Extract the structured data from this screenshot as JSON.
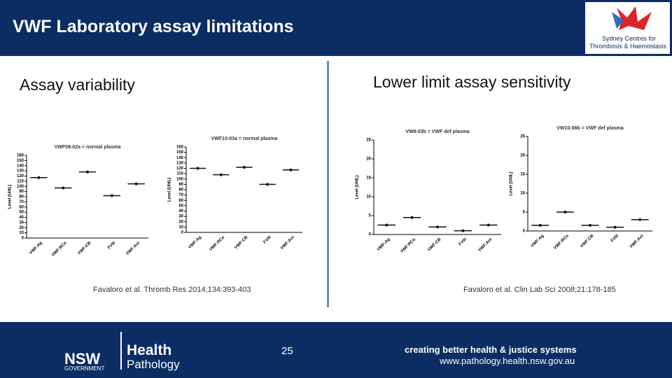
{
  "header": {
    "title": "VWF Laboratory assay limitations",
    "logo_line1": "Sydney Centres for",
    "logo_line2": "Thrombosis & Haemostasis"
  },
  "left": {
    "heading": "Assay variability",
    "citation": "Favaloro et al. Thromb Res 2014;134:393-403"
  },
  "right": {
    "heading": "Lower limit assay sensitivity",
    "citation": "Favaloro et al. Clin Lab Sci 2008;21:178-185"
  },
  "chart_data": [
    {
      "type": "scatter",
      "title": "VWF08-02a = normal plasma",
      "y_label": "Level (U/dL)",
      "categories": [
        "VWF:Ag",
        "VWF:RCo",
        "VWF:CB",
        "FVIII",
        "VWF:Act"
      ],
      "values": [
        117,
        97,
        128,
        82,
        105
      ],
      "ylim": [
        0,
        160
      ],
      "yticks": [
        0,
        10,
        20,
        30,
        40,
        50,
        60,
        70,
        80,
        90,
        100,
        110,
        120,
        130,
        140,
        150,
        160
      ],
      "color": "#111111"
    },
    {
      "type": "scatter",
      "title": "VWF10-03a = normal plasma",
      "y_label": "Level (U/dL)",
      "categories": [
        "VWF:Ag",
        "VWF:RCo",
        "VWF:CB",
        "FVIII",
        "VWF:Act"
      ],
      "values": [
        120,
        108,
        122,
        90,
        117
      ],
      "ylim": [
        0,
        160
      ],
      "yticks": [
        0,
        10,
        20,
        30,
        40,
        50,
        60,
        70,
        80,
        90,
        100,
        110,
        120,
        130,
        140,
        150,
        160
      ],
      "color": "#111111"
    },
    {
      "type": "scatter",
      "title": "VW9-03b = VWF def plasma",
      "y_label": "Level (U/dL)",
      "categories": [
        "VWF:Ag",
        "VWF:RCo",
        "VWF:CB",
        "FVIII",
        "VWF:Act"
      ],
      "values": [
        2.5,
        4.5,
        2,
        1,
        2.5
      ],
      "ylim": [
        0,
        25
      ],
      "yticks": [
        0,
        5,
        10,
        15,
        20,
        25
      ],
      "color": "#111111"
    },
    {
      "type": "scatter",
      "title": "VW10-08b = VWF def plasma",
      "y_label": "Level (U/dL)",
      "categories": [
        "VWF:Ag",
        "VWF:RCo",
        "VWF:CB",
        "FVIII",
        "VWF:Act"
      ],
      "values": [
        1.5,
        5,
        1.5,
        1,
        3
      ],
      "ylim": [
        0,
        25
      ],
      "yticks": [
        0,
        5,
        10,
        15,
        20,
        25
      ],
      "color": "#111111"
    }
  ],
  "footer": {
    "page": "25",
    "org1": "Health",
    "org2": "Pathology",
    "nsw": "NSW",
    "gov": "GOVERNMENT",
    "tagline": "creating better health & justice systems",
    "url": "www.pathology.health.nsw.gov.au"
  }
}
